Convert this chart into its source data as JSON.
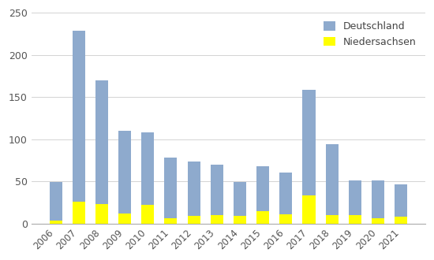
{
  "years": [
    2006,
    2007,
    2008,
    2009,
    2010,
    2011,
    2012,
    2013,
    2014,
    2015,
    2016,
    2017,
    2018,
    2019,
    2020,
    2021
  ],
  "deutschland": [
    49,
    229,
    170,
    110,
    108,
    78,
    74,
    70,
    49,
    68,
    60,
    159,
    94,
    51,
    51,
    46
  ],
  "niedersachsen": [
    3,
    26,
    23,
    12,
    22,
    6,
    9,
    10,
    9,
    15,
    11,
    33,
    10,
    10,
    6,
    8
  ],
  "deutschland_color": "#8eaacd",
  "niedersachsen_color": "#ffff00",
  "legend_deutschland": "Deutschland",
  "legend_niedersachsen": "Niedersachsen",
  "ylim": [
    0,
    250
  ],
  "yticks": [
    0,
    50,
    100,
    150,
    200,
    250
  ],
  "background_color": "#ffffff",
  "bar_width": 0.55
}
